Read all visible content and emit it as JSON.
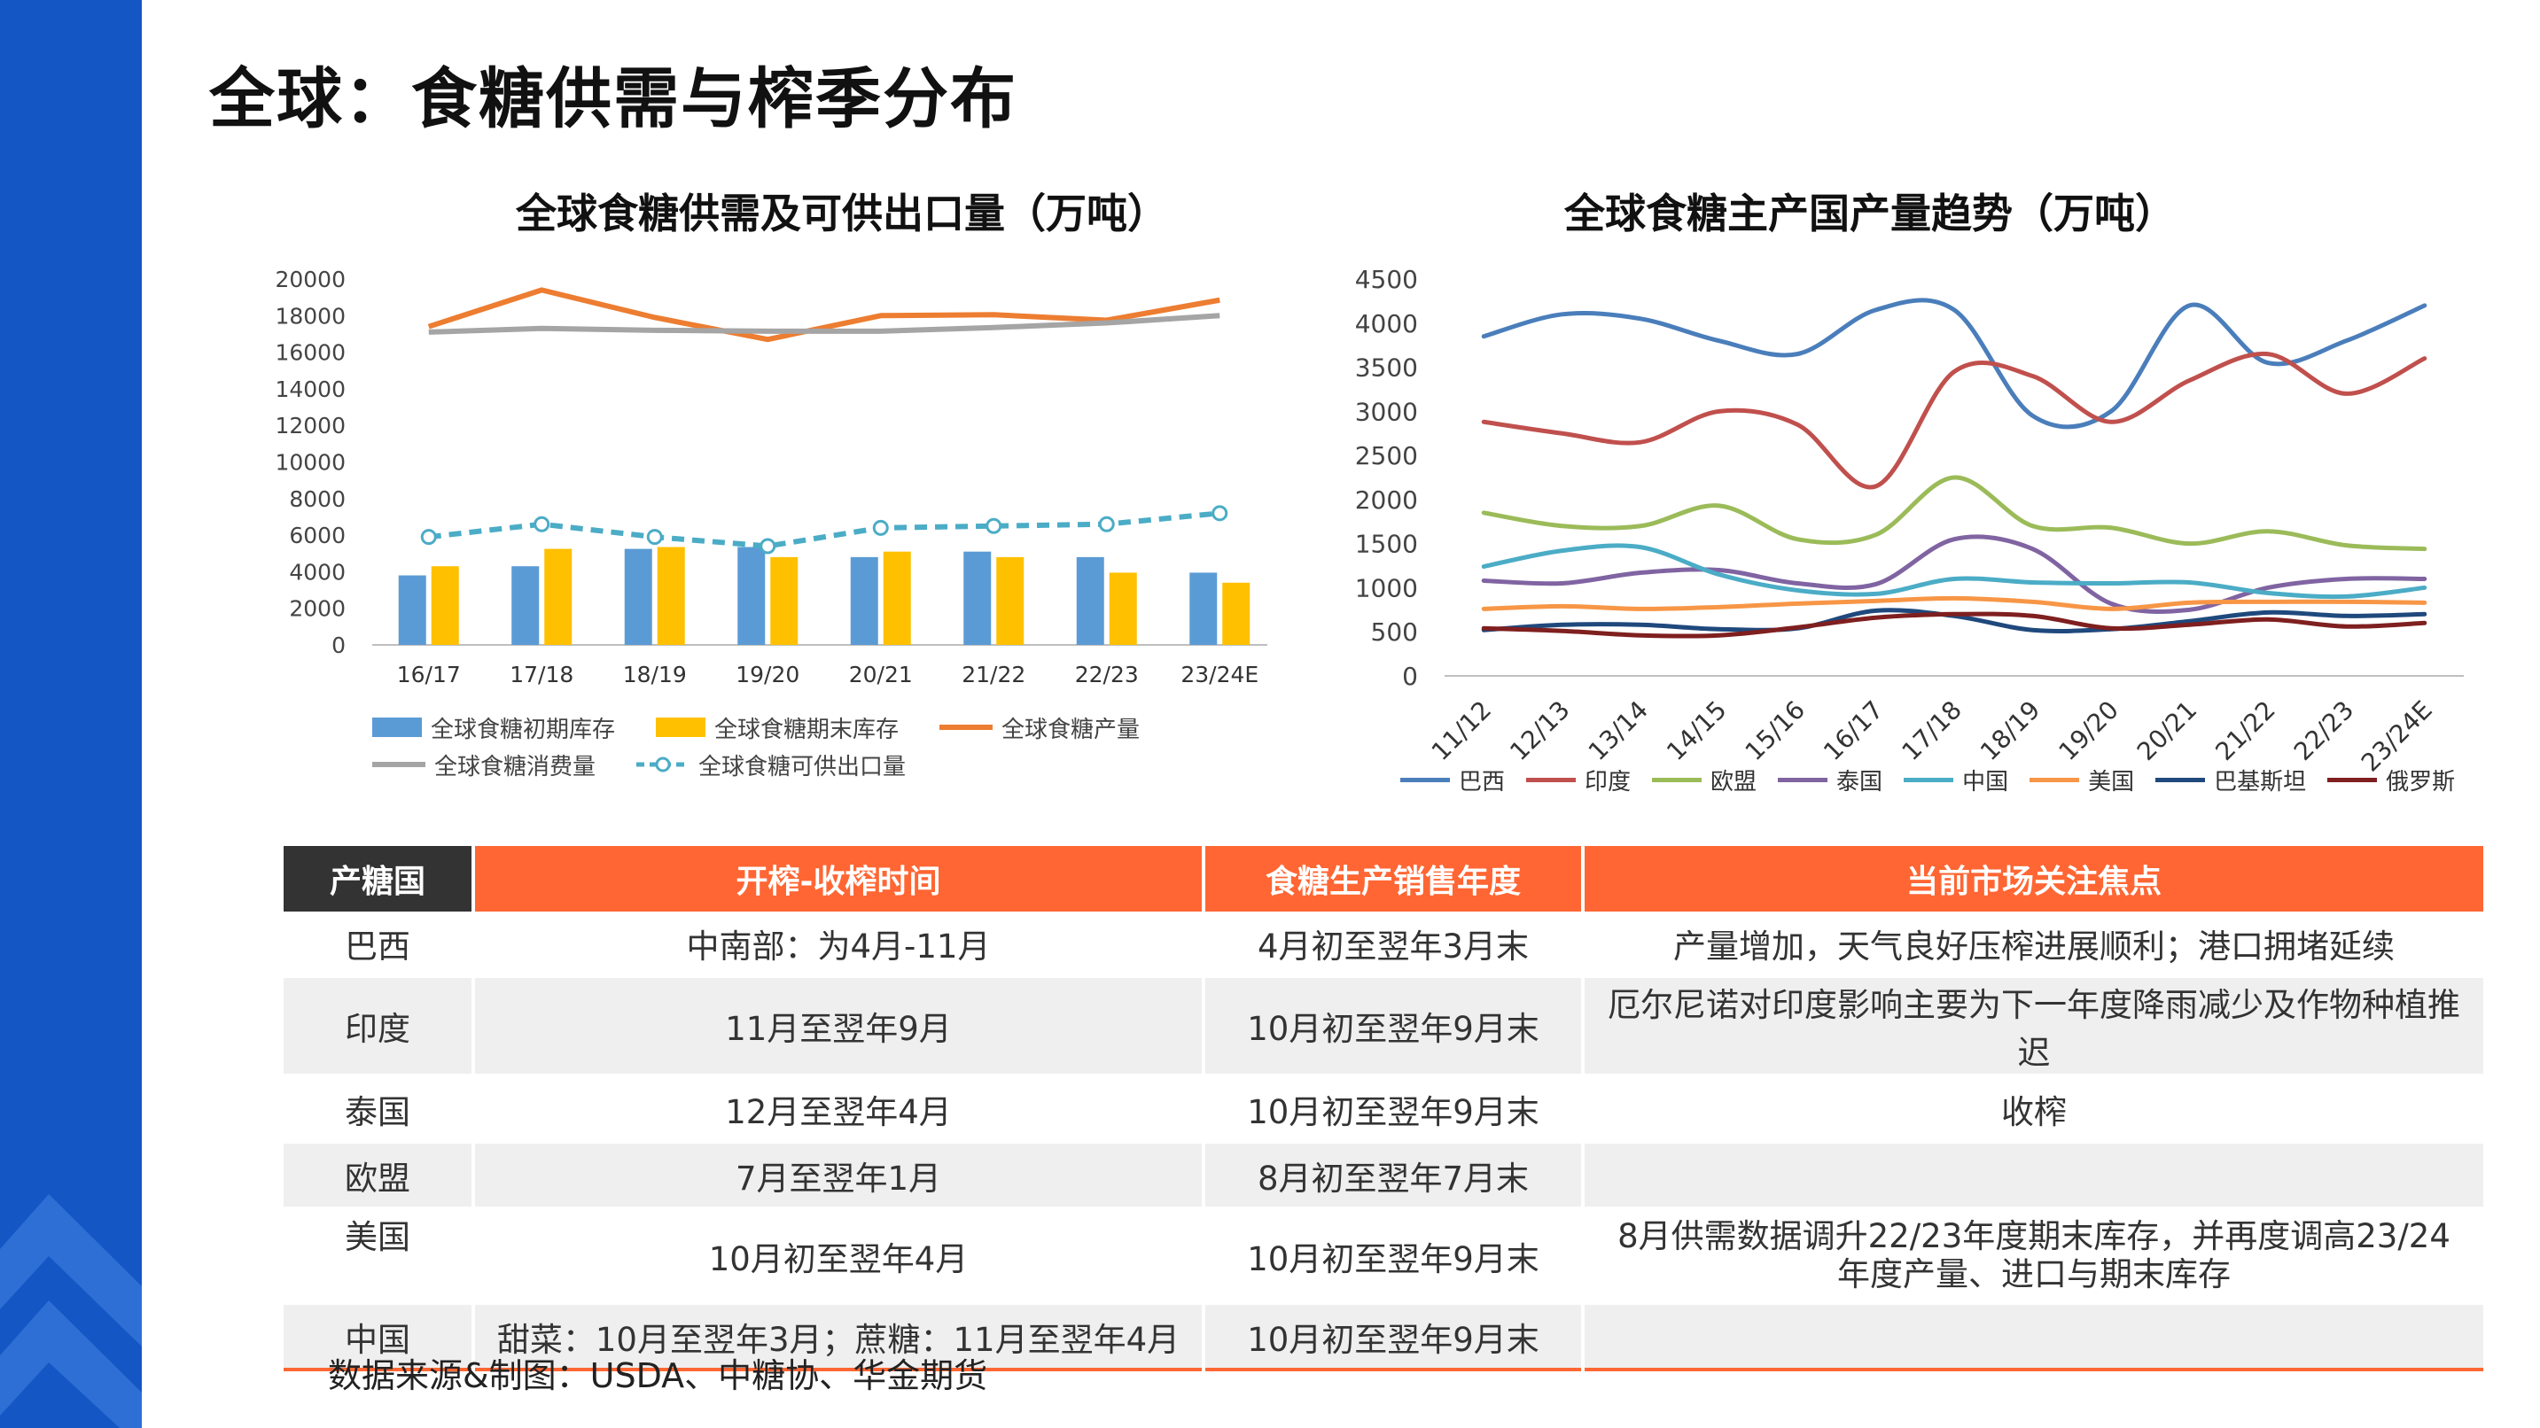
{
  "page_title": "全球：食糖供需与榨季分布",
  "colors": {
    "sidebar": "#1356c4",
    "table_header": "#ff6633",
    "table_header_first": "#333333"
  },
  "chart_data": [
    {
      "type": "bar+line",
      "title": "全球食糖供需及可供出口量（万吨）",
      "categories": [
        "16/17",
        "17/18",
        "18/19",
        "19/20",
        "20/21",
        "21/22",
        "22/23",
        "23/24E"
      ],
      "ylim": [
        0,
        20000
      ],
      "yticks": [
        0,
        2000,
        4000,
        6000,
        8000,
        10000,
        12000,
        14000,
        16000,
        18000,
        20000
      ],
      "series": [
        {
          "name": "全球食糖初期库存",
          "kind": "bar",
          "color": "#5b9bd5",
          "values": [
            3800,
            4300,
            5250,
            5350,
            4800,
            5100,
            4800,
            3950
          ]
        },
        {
          "name": "全球食糖期末库存",
          "kind": "bar",
          "color": "#ffc000",
          "values": [
            4300,
            5250,
            5350,
            4800,
            5100,
            4800,
            3950,
            3400
          ]
        },
        {
          "name": "全球食糖产量",
          "kind": "line",
          "color": "#ed7d31",
          "values": [
            17400,
            19400,
            17900,
            16700,
            18000,
            18050,
            17750,
            18850
          ]
        },
        {
          "name": "全球食糖消费量",
          "kind": "line",
          "color": "#a5a5a5",
          "values": [
            17100,
            17300,
            17200,
            17150,
            17150,
            17350,
            17600,
            18000
          ]
        },
        {
          "name": "全球食糖可供出口量",
          "kind": "dashed-line-markers",
          "color": "#4bacc6",
          "values": [
            5900,
            6600,
            5900,
            5400,
            6400,
            6500,
            6600,
            7200
          ]
        }
      ],
      "legend_rows": [
        [
          "全球食糖初期库存",
          "全球食糖期末库存",
          "全球食糖产量"
        ],
        [
          "全球食糖消费量",
          "全球食糖可供出口量"
        ]
      ]
    },
    {
      "type": "line",
      "title": "全球食糖主产国产量趋势（万吨）",
      "categories": [
        "11/12",
        "12/13",
        "13/14",
        "14/15",
        "15/16",
        "16/17",
        "17/18",
        "18/19",
        "19/20",
        "20/21",
        "21/22",
        "22/23",
        "23/24E"
      ],
      "ylim": [
        0,
        4500
      ],
      "yticks": [
        0,
        500,
        1000,
        1500,
        2000,
        2500,
        3000,
        3500,
        4000,
        4500
      ],
      "series": [
        {
          "name": "巴西",
          "color": "#4a7ebb",
          "values": [
            3850,
            4100,
            4050,
            3800,
            3650,
            4150,
            4150,
            2950,
            3000,
            4200,
            3550,
            3800,
            4200
          ]
        },
        {
          "name": "印度",
          "color": "#c0504d",
          "values": [
            2880,
            2750,
            2650,
            3000,
            2850,
            2150,
            3450,
            3400,
            2880,
            3350,
            3650,
            3200,
            3600
          ]
        },
        {
          "name": "欧盟",
          "color": "#9bbb59",
          "values": [
            1850,
            1700,
            1700,
            1930,
            1550,
            1600,
            2250,
            1700,
            1680,
            1500,
            1640,
            1480,
            1440
          ]
        },
        {
          "name": "泰国",
          "color": "#8064a2",
          "values": [
            1080,
            1050,
            1170,
            1200,
            1050,
            1040,
            1550,
            1440,
            820,
            750,
            1000,
            1100,
            1100
          ]
        },
        {
          "name": "中国",
          "color": "#4bacc6",
          "values": [
            1240,
            1420,
            1460,
            1150,
            970,
            930,
            1100,
            1060,
            1050,
            1060,
            940,
            900,
            1000
          ]
        },
        {
          "name": "美国",
          "color": "#f79646",
          "values": [
            760,
            790,
            760,
            780,
            820,
            850,
            880,
            840,
            760,
            830,
            840,
            840,
            830
          ]
        },
        {
          "name": "巴基斯坦",
          "color": "#1f497d",
          "values": [
            520,
            580,
            580,
            530,
            540,
            740,
            680,
            520,
            530,
            620,
            720,
            680,
            700
          ]
        },
        {
          "name": "俄罗斯",
          "color": "#7f1f1f",
          "values": [
            540,
            510,
            460,
            460,
            550,
            660,
            700,
            680,
            540,
            580,
            640,
            560,
            600
          ]
        }
      ]
    }
  ],
  "table": {
    "headers": [
      "产糖国",
      "开榨-收榨时间",
      "食糖生产销售年度",
      "当前市场关注焦点"
    ],
    "rows": [
      [
        "巴西",
        "中南部：为4月-11月",
        "4月初至翌年3月末",
        "产量增加，天气良好压榨进展顺利；港口拥堵延续"
      ],
      [
        "印度",
        "11月至翌年9月",
        "10月初至翌年9月末",
        "厄尔尼诺对印度影响主要为下一年度降雨减少及作物种植推迟"
      ],
      [
        "泰国",
        "12月至翌年4月",
        "10月初至翌年9月末",
        "收榨"
      ],
      [
        "欧盟",
        "7月至翌年1月",
        "8月初至翌年7月末",
        ""
      ],
      [
        "美国",
        "10月初至翌年4月",
        "10月初至翌年9月末",
        "8月供需数据调升22/23年度期末库存，并再度调高23/24年度产量、进口与期末库存"
      ],
      [
        "中国",
        "甜菜：10月至翌年3月；蔗糖：11月至翌年4月",
        "10月初至翌年9月末",
        ""
      ]
    ]
  },
  "source": "数据来源&制图：USDA、中糖协、华金期货"
}
